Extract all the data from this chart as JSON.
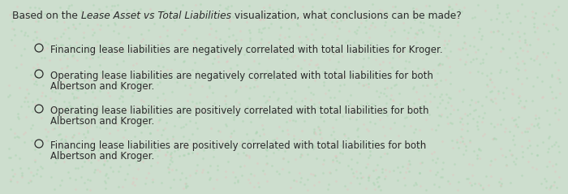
{
  "bg_color": "#cddece",
  "text_color": "#2a2a2a",
  "question_prefix": "Based on the ",
  "question_italic": "Lease Asset vs Total Liabilities",
  "question_suffix": " visualization, what conclusions can be made?",
  "options": [
    [
      "Financing lease liabilities are negatively correlated with total liabilities for Kroger."
    ],
    [
      "Operating lease liabilities are negatively correlated with total liabilities for both",
      "Albertson and Kroger."
    ],
    [
      "Operating lease liabilities are positively correlated with total liabilities for both",
      "Albertson and Kroger."
    ],
    [
      "Financing lease liabilities are positively correlated with total liabilities for both",
      "Albertson and Kroger."
    ]
  ],
  "font_family": "DejaVu Sans",
  "font_size": 8.5,
  "q_font_size": 8.8,
  "fig_width": 7.0,
  "fig_height": 2.39,
  "dpi": 100
}
